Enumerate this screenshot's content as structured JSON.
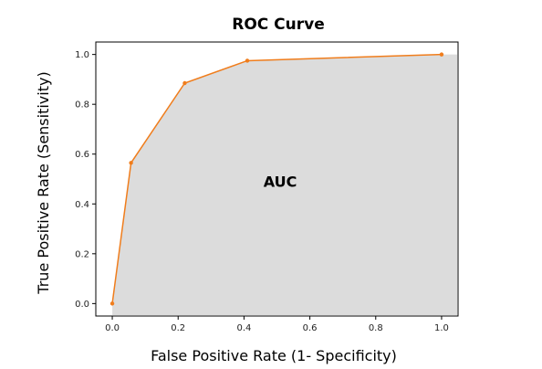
{
  "chart_data": {
    "type": "area",
    "title": "ROC Curve",
    "xlabel": "False Positive Rate (1- Specificity)",
    "ylabel": "True Positive Rate (Sensitivity)",
    "xlim": [
      -0.05,
      1.05
    ],
    "ylim": [
      -0.05,
      1.05
    ],
    "x_ticks": [
      0.0,
      0.2,
      0.4,
      0.6,
      0.8,
      1.0
    ],
    "y_ticks": [
      0.0,
      0.2,
      0.4,
      0.6,
      0.8,
      1.0
    ],
    "x_tick_labels": [
      "0.0",
      "0.2",
      "0.4",
      "0.6",
      "0.8",
      "1.0"
    ],
    "y_tick_labels": [
      "0.0",
      "0.2",
      "0.4",
      "0.6",
      "0.8",
      "1.0"
    ],
    "grid": false,
    "series": [
      {
        "x": [
          0.0,
          0.057,
          0.22,
          0.41,
          1.0
        ],
        "y": [
          0.0,
          0.565,
          0.885,
          0.975,
          1.0
        ]
      }
    ],
    "annotations": [
      {
        "text": "AUC",
        "x": 0.51,
        "y": 0.49
      }
    ],
    "colors": {
      "line": "#f07d1c",
      "area": "#dcdcdc",
      "axes": "#000000"
    }
  }
}
